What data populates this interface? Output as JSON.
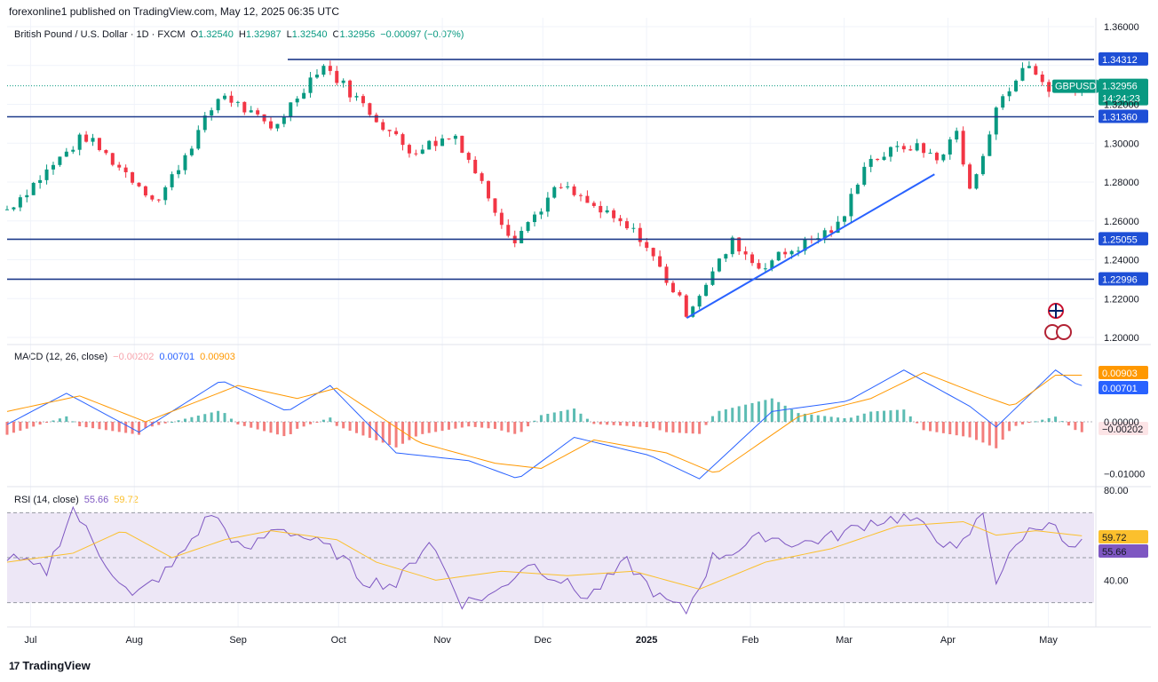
{
  "header": {
    "publisher_line": "forexonline1 published on TradingView.com, May 12, 2025 06:35 UTC"
  },
  "footer": {
    "brand": "TradingView",
    "logo_glyph": "17"
  },
  "colors": {
    "up": "#089981",
    "down": "#f23645",
    "line_blue": "#2962ff",
    "level_line": "#1e3a8a",
    "macd_signal": "#ff9800",
    "rsi_line": "#7e57c2",
    "rsi_ma": "#fbc02d",
    "rsi_band": "#ede7f6"
  },
  "price_panel": {
    "legend": {
      "symbol": "British Pound / U.S. Dollar · 1D · FXCM",
      "o_label": "O",
      "o": "1.32540",
      "h_label": "H",
      "h": "1.32987",
      "l_label": "L",
      "l": "1.32540",
      "c_label": "C",
      "c": "1.32956",
      "change": "−0.00097 (−0.07%)"
    },
    "last_price_label": "1.32956",
    "ticker_tag": "GBPUSD",
    "countdown": "14:24:23"
  },
  "macd_panel": {
    "legend": {
      "name": "MACD (12, 26, close)",
      "hist": "−0.00202",
      "macd": "0.00701",
      "signal": "0.00903"
    },
    "labels": {
      "signal": "0.00903",
      "macd": "0.00701",
      "hist": "−0.00202"
    }
  },
  "rsi_panel": {
    "legend": {
      "name": "RSI (14, close)",
      "rsi": "55.66",
      "ma": "59.72"
    },
    "labels": {
      "ma": "59.72",
      "rsi": "55.66"
    }
  },
  "chart_data": {
    "type": "candlestick",
    "x_ticks": [
      "Jul",
      "Aug",
      "Sep",
      "Oct",
      "Nov",
      "Dec",
      "2025",
      "Feb",
      "Mar",
      "Apr",
      "May"
    ],
    "price_axis_ticks": [
      "1.36000",
      "1.32000",
      "1.30000",
      "1.28000",
      "1.26000",
      "1.24000",
      "1.22000",
      "1.20000"
    ],
    "price_ylim": [
      1.2,
      1.36
    ],
    "horizontal_levels": [
      1.34312,
      1.3136,
      1.25055,
      1.22996
    ],
    "level_labels": [
      "1.34312",
      "1.31360",
      "1.25055",
      "1.22996"
    ],
    "trendline": {
      "from": [
        "2025-01-13",
        1.21
      ],
      "to": [
        "2025-03-28",
        1.284
      ]
    },
    "close_keypoints": [
      {
        "x": "2024-06-24",
        "y": 1.266
      },
      {
        "x": "2024-07-17",
        "y": 1.304
      },
      {
        "x": "2024-08-08",
        "y": 1.27
      },
      {
        "x": "2024-08-27",
        "y": 1.326
      },
      {
        "x": "2024-09-11",
        "y": 1.307
      },
      {
        "x": "2024-09-26",
        "y": 1.341
      },
      {
        "x": "2024-10-22",
        "y": 1.296
      },
      {
        "x": "2024-11-05",
        "y": 1.304
      },
      {
        "x": "2024-11-22",
        "y": 1.25
      },
      {
        "x": "2024-12-06",
        "y": 1.278
      },
      {
        "x": "2024-12-30",
        "y": 1.252
      },
      {
        "x": "2025-01-13",
        "y": 1.213
      },
      {
        "x": "2025-01-27",
        "y": 1.25
      },
      {
        "x": "2025-02-03",
        "y": 1.236
      },
      {
        "x": "2025-02-28",
        "y": 1.258
      },
      {
        "x": "2025-03-07",
        "y": 1.29
      },
      {
        "x": "2025-03-20",
        "y": 1.299
      },
      {
        "x": "2025-03-31",
        "y": 1.292
      },
      {
        "x": "2025-04-03",
        "y": 1.31
      },
      {
        "x": "2025-04-08",
        "y": 1.274
      },
      {
        "x": "2025-04-17",
        "y": 1.325
      },
      {
        "x": "2025-04-25",
        "y": 1.34
      },
      {
        "x": "2025-05-01",
        "y": 1.328
      },
      {
        "x": "2025-05-09",
        "y": 1.3295
      }
    ],
    "last_close": 1.32956,
    "macd": {
      "name": "MACD (12, 26, close)",
      "axis_ticks": [
        "0.00000",
        "−0.01000"
      ],
      "ylim": [
        -0.012,
        0.012
      ],
      "macd_keypoints": [
        [
          0,
          -0.0005
        ],
        [
          18,
          0.0055
        ],
        [
          40,
          -0.002
        ],
        [
          65,
          0.008
        ],
        [
          85,
          0.002
        ],
        [
          98,
          0.007
        ],
        [
          118,
          -0.006
        ],
        [
          140,
          -0.0075
        ],
        [
          155,
          -0.011
        ],
        [
          172,
          -0.003
        ],
        [
          195,
          -0.0065
        ],
        [
          210,
          -0.011
        ],
        [
          232,
          0.002
        ],
        [
          255,
          0.004
        ],
        [
          272,
          0.01
        ],
        [
          292,
          0.003
        ],
        [
          300,
          -0.001
        ],
        [
          318,
          0.01
        ],
        [
          325,
          0.007
        ]
      ],
      "signal_keypoints": [
        [
          0,
          0.002
        ],
        [
          22,
          0.005
        ],
        [
          42,
          0.0
        ],
        [
          70,
          0.007
        ],
        [
          88,
          0.0045
        ],
        [
          100,
          0.0065
        ],
        [
          125,
          -0.004
        ],
        [
          148,
          -0.008
        ],
        [
          162,
          -0.009
        ],
        [
          178,
          -0.0035
        ],
        [
          200,
          -0.006
        ],
        [
          215,
          -0.01
        ],
        [
          240,
          0.001
        ],
        [
          262,
          0.0045
        ],
        [
          278,
          0.0095
        ],
        [
          296,
          0.005
        ],
        [
          305,
          0.003
        ],
        [
          318,
          0.009
        ],
        [
          325,
          0.009
        ]
      ],
      "last_values": {
        "signal": 0.00903,
        "macd": 0.00701,
        "hist": -0.00202
      }
    },
    "rsi": {
      "name": "RSI (14, close)",
      "axis_ticks": [
        "80.00",
        "40.00"
      ],
      "ylim": [
        20,
        80
      ],
      "bands": [
        70,
        50,
        30
      ],
      "rsi_keypoints": [
        [
          0,
          50
        ],
        [
          12,
          44
        ],
        [
          20,
          72
        ],
        [
          28,
          52
        ],
        [
          38,
          32
        ],
        [
          50,
          46
        ],
        [
          62,
          70
        ],
        [
          72,
          52
        ],
        [
          82,
          64
        ],
        [
          92,
          58
        ],
        [
          100,
          52
        ],
        [
          108,
          40
        ],
        [
          118,
          38
        ],
        [
          128,
          58
        ],
        [
          138,
          30
        ],
        [
          148,
          34
        ],
        [
          158,
          48
        ],
        [
          168,
          40
        ],
        [
          176,
          32
        ],
        [
          188,
          48
        ],
        [
          198,
          32
        ],
        [
          206,
          26
        ],
        [
          214,
          50
        ],
        [
          222,
          54
        ],
        [
          230,
          60
        ],
        [
          240,
          56
        ],
        [
          252,
          60
        ],
        [
          262,
          66
        ],
        [
          272,
          68
        ],
        [
          280,
          62
        ],
        [
          288,
          52
        ],
        [
          296,
          70
        ],
        [
          300,
          40
        ],
        [
          308,
          60
        ],
        [
          316,
          67
        ],
        [
          322,
          53
        ],
        [
          326,
          55.66
        ]
      ],
      "ma_keypoints": [
        [
          0,
          48
        ],
        [
          20,
          52
        ],
        [
          35,
          62
        ],
        [
          50,
          50
        ],
        [
          66,
          58
        ],
        [
          80,
          62
        ],
        [
          100,
          58
        ],
        [
          112,
          48
        ],
        [
          130,
          40
        ],
        [
          150,
          44
        ],
        [
          170,
          42
        ],
        [
          190,
          44
        ],
        [
          210,
          36
        ],
        [
          230,
          48
        ],
        [
          250,
          54
        ],
        [
          270,
          64
        ],
        [
          290,
          66
        ],
        [
          300,
          60
        ],
        [
          312,
          62
        ],
        [
          326,
          59.72
        ]
      ],
      "last_values": {
        "rsi": 55.66,
        "ma": 59.72
      }
    }
  }
}
